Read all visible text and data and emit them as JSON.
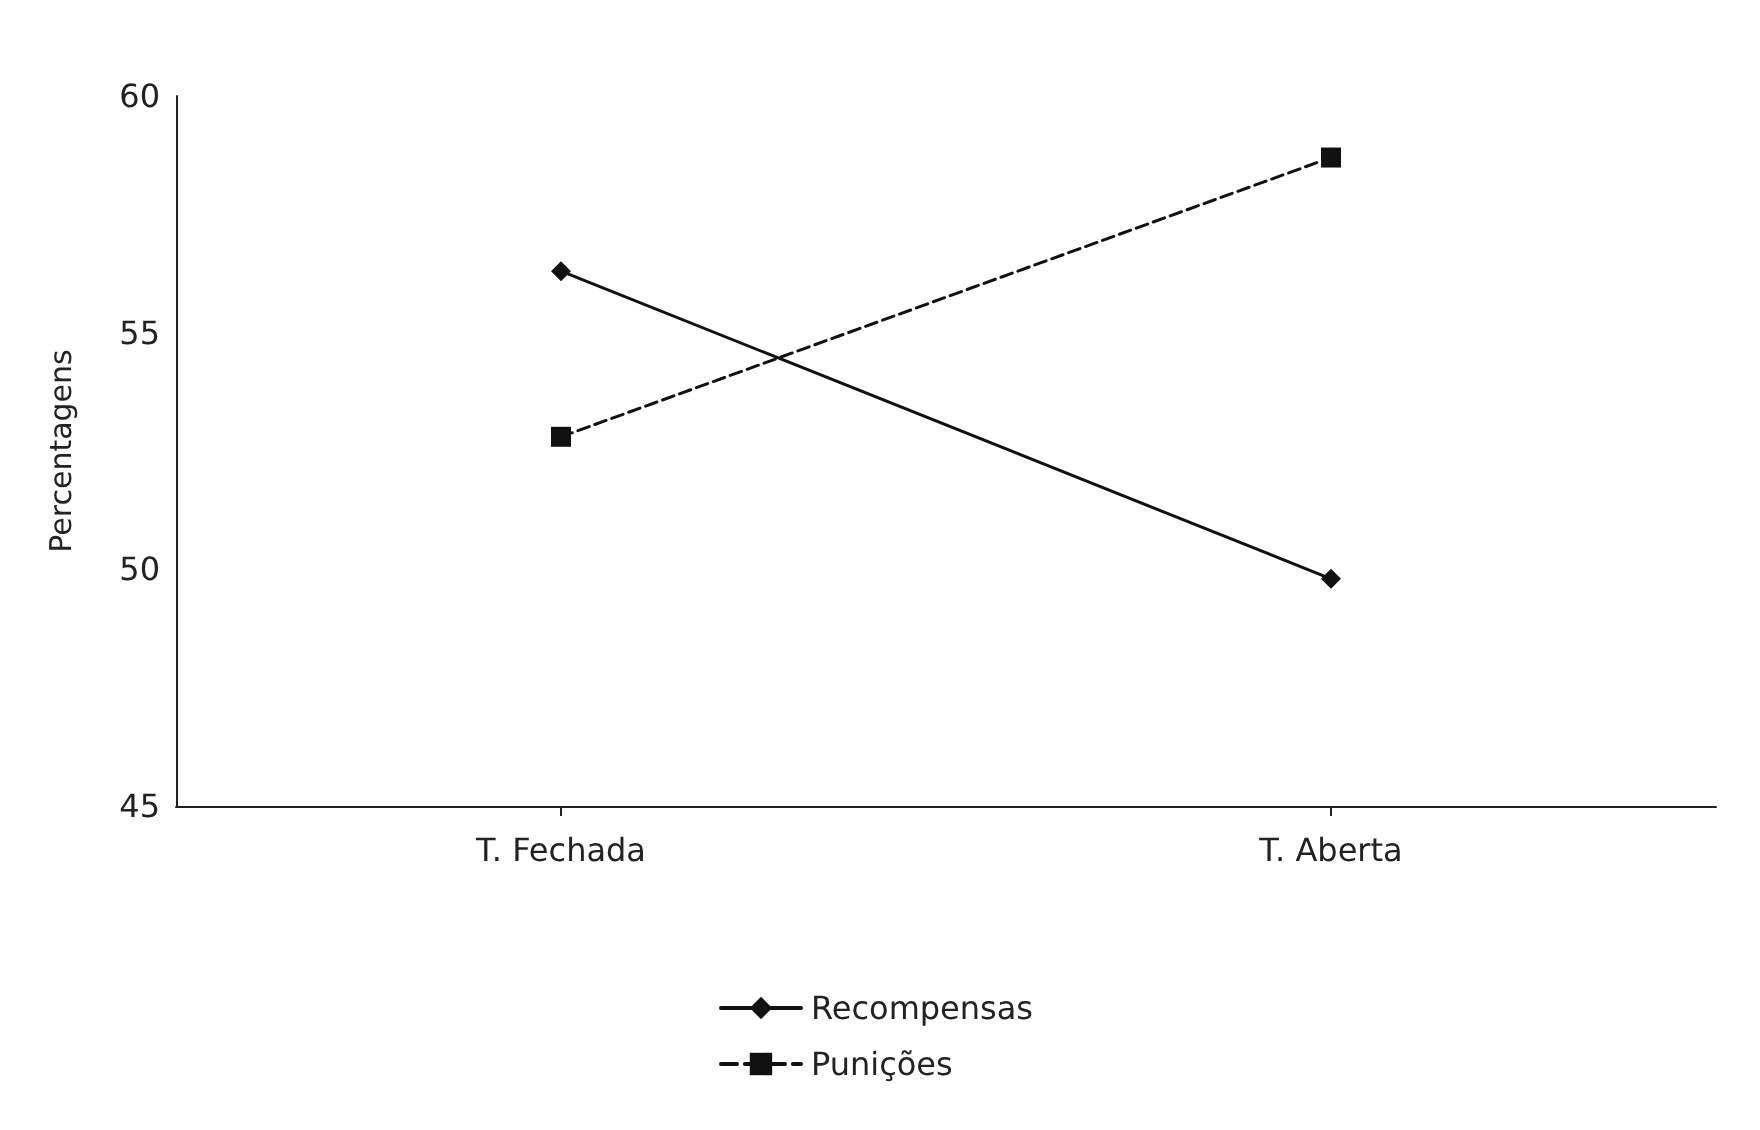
{
  "chart_data": {
    "type": "line",
    "ylabel": "Percentagens",
    "categories": [
      "T. Fechada",
      "T. Aberta"
    ],
    "series": [
      {
        "name": "Recompensas",
        "color": "#111111",
        "values": [
          56.3,
          49.8
        ],
        "marker": "diamond",
        "line_style": "solid"
      },
      {
        "name": "Punições",
        "color": "#111111",
        "values": [
          52.8,
          58.7
        ],
        "marker": "square",
        "line_style": "dashed"
      }
    ],
    "ylim": [
      45,
      60
    ],
    "yticks": [
      45,
      50,
      55,
      60
    ],
    "grid": false,
    "legend": "bottom"
  }
}
